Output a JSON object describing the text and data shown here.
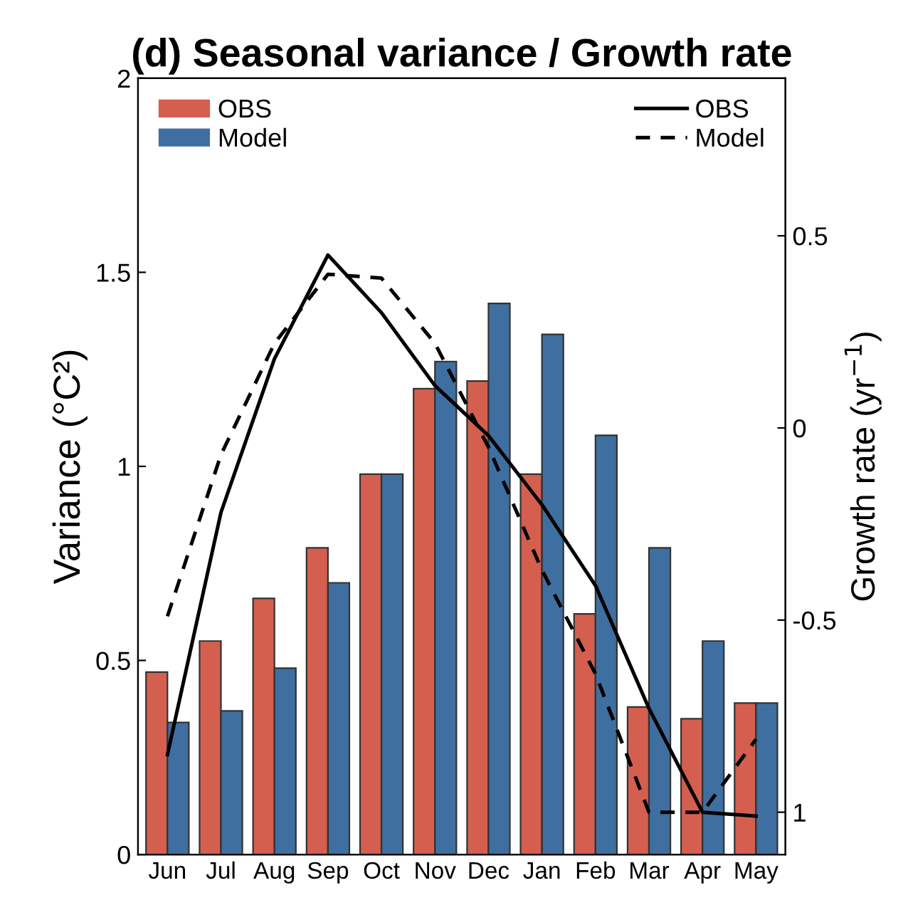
{
  "chart_data": {
    "type": "bar",
    "title": "(d) Seasonal variance / Growth rate",
    "ylabel": "Variance (°C²)",
    "y2label": "Growth rate (yr$^{−1}$)",
    "categories": [
      "Jun",
      "Jul",
      "Aug",
      "Sep",
      "Oct",
      "Nov",
      "Dec",
      "Jan",
      "Feb",
      "Mar",
      "Apr",
      "May"
    ],
    "series": [
      {
        "name": "OBS",
        "color": "#d45f4f",
        "values": [
          0.47,
          0.55,
          0.66,
          0.79,
          0.98,
          1.2,
          1.22,
          0.98,
          0.62,
          0.38,
          0.35,
          0.39
        ]
      },
      {
        "name": "Model",
        "color": "#3f6fa0",
        "values": [
          0.34,
          0.37,
          0.48,
          0.7,
          0.98,
          1.27,
          1.42,
          1.34,
          1.08,
          0.79,
          0.55,
          0.39
        ]
      },
      {
        "name": "OBS",
        "type": "line",
        "axis": "y2",
        "color": "#000000",
        "line_style": "solid",
        "values": [
          -0.85,
          -0.22,
          0.18,
          0.45,
          0.3,
          0.11,
          -0.02,
          -0.2,
          -0.41,
          -0.73,
          -1.0,
          -1.01
        ]
      },
      {
        "name": "Model",
        "type": "line",
        "axis": "y2",
        "color": "#000000",
        "line_style": "dashed",
        "values": [
          -0.49,
          -0.07,
          0.22,
          0.4,
          0.39,
          0.22,
          -0.05,
          -0.37,
          -0.64,
          -1.0,
          -1.0,
          -0.81
        ]
      }
    ],
    "ylim": [
      0,
      2
    ],
    "yticks": [
      0,
      0.5,
      1,
      1.5,
      2
    ],
    "y2lim": [
      -1.11,
      0.91
    ],
    "y2ticks": [
      0.5,
      0,
      -0.5,
      {
        "value": -1,
        "label": "1"
      }
    ],
    "legend": "top",
    "grid": false
  }
}
